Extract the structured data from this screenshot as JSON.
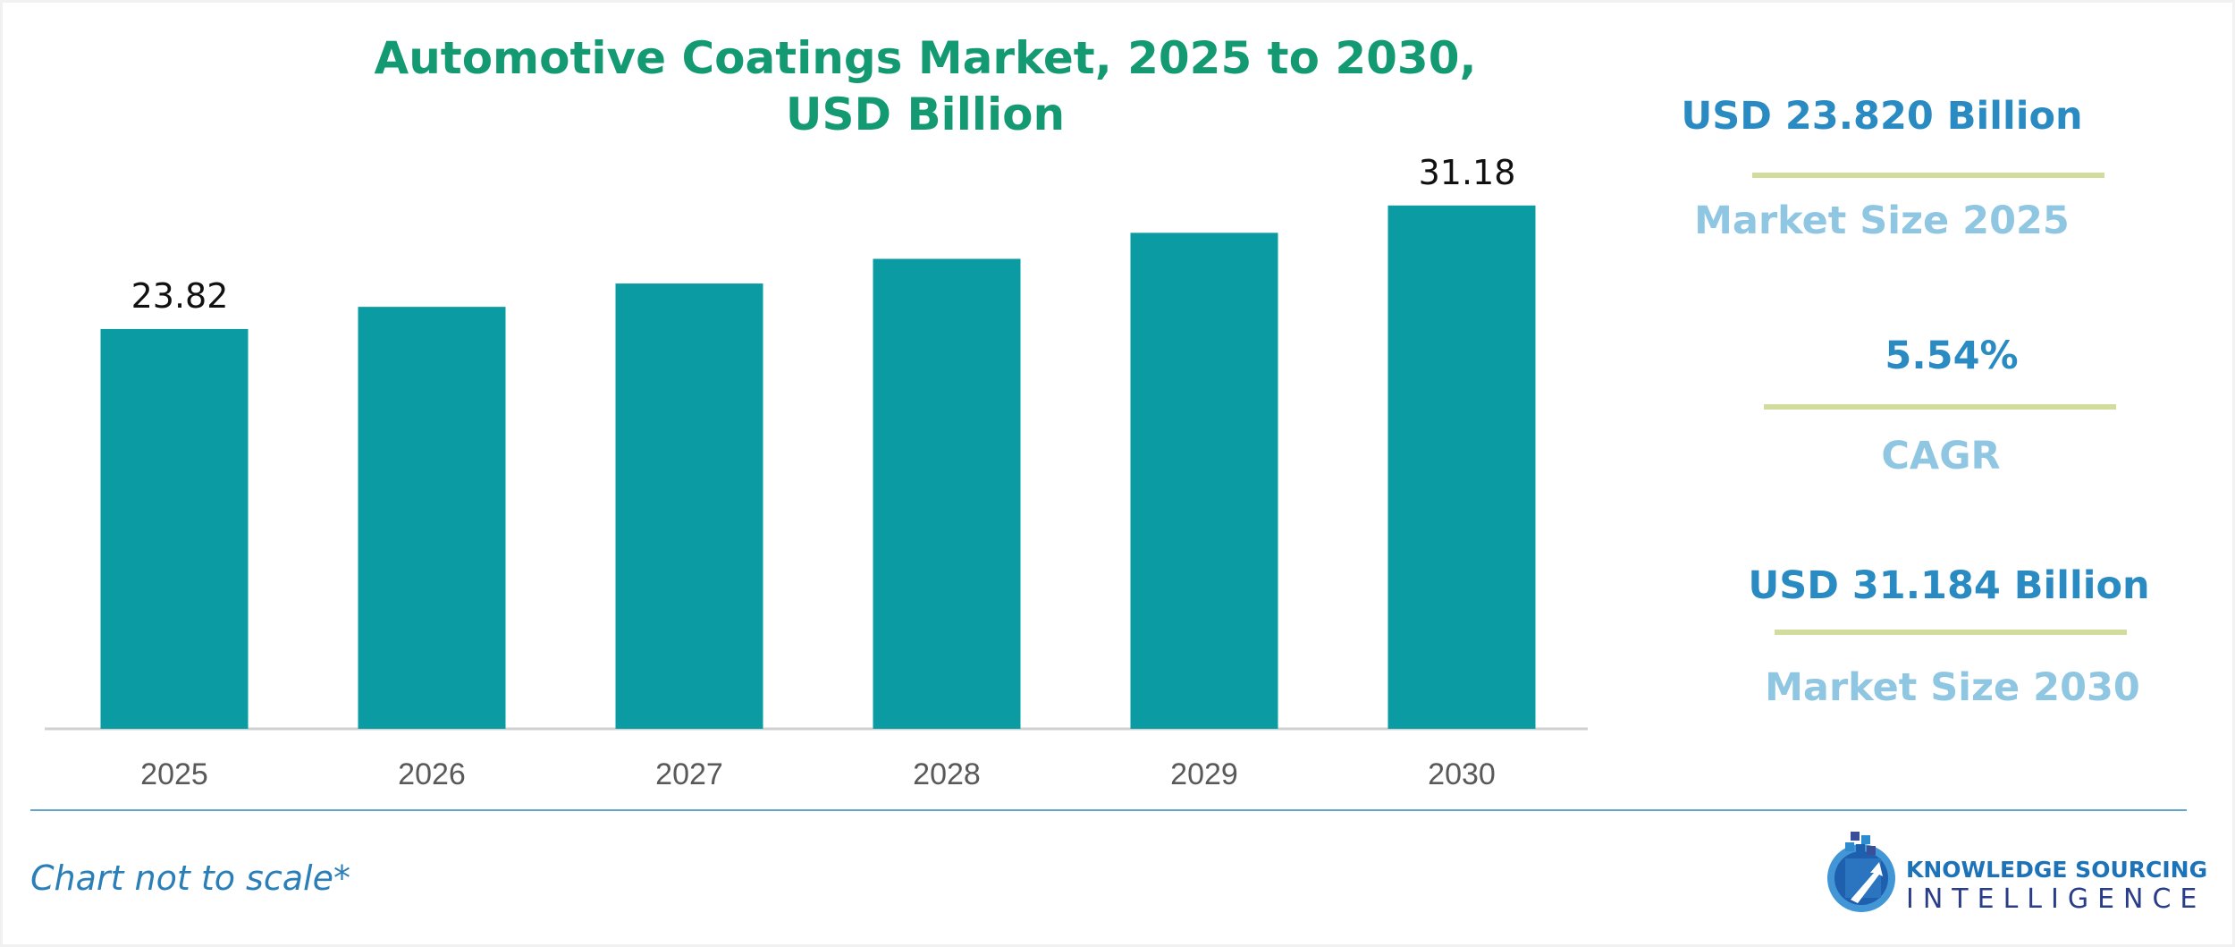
{
  "chart_data": {
    "type": "bar",
    "title_lines": [
      "Automotive Coatings Market, 2025 to 2030,",
      "USD Billion"
    ],
    "categories": [
      "2025",
      "2026",
      "2027",
      "2028",
      "2029",
      "2030"
    ],
    "values": [
      23.82,
      25.14,
      26.53,
      28.0,
      29.55,
      31.18
    ],
    "data_labels": [
      "23.82",
      "",
      "",
      "",
      "",
      "31.18"
    ],
    "xlabel": "",
    "ylabel": "",
    "ylim": [
      0,
      32.5
    ],
    "grid": false,
    "legend": null,
    "bar_color": "#0a9ca2"
  },
  "stats": [
    {
      "value": "USD 23.820 Billion",
      "caption": "Market Size 2025"
    },
    {
      "value": "5.54%",
      "caption": "CAGR"
    },
    {
      "value": "USD 31.184 Billion",
      "caption": "Market Size 2030"
    }
  ],
  "footnote": "Chart not to scale*",
  "logo": {
    "line1": "KNOWLEDGE SOURCING",
    "line2": "INTELLIGENCE"
  },
  "colors": {
    "title": "#149a72",
    "stat_value": "#2a8bc3",
    "stat_caption": "#8fc6e2",
    "stat_rule": "#d2dc9c",
    "footnote": "#2a7fb8"
  }
}
